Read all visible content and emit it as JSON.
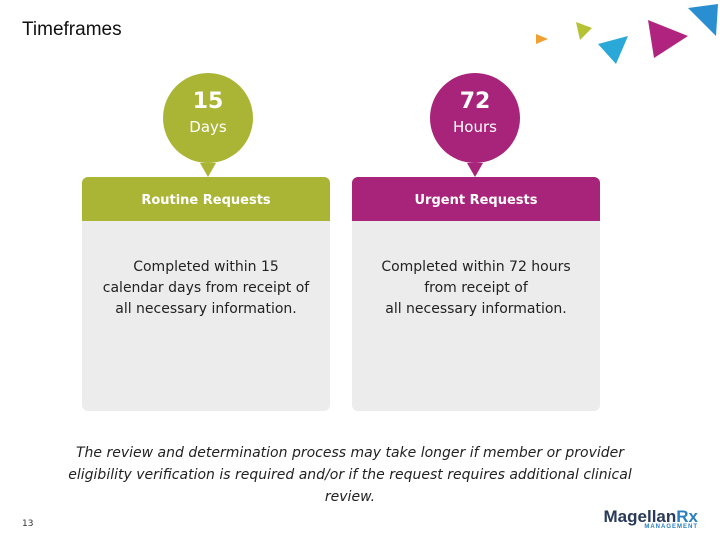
{
  "title": "Timeframes",
  "cards": [
    {
      "number": 15,
      "unit": "Days",
      "header": "Routine Requests",
      "body": [
        "Completed within 15",
        "calendar days from receipt of",
        "all necessary information."
      ]
    },
    {
      "number": 72,
      "unit": "Hours",
      "header": "Urgent Requests",
      "body": [
        "Completed within 72 hours",
        "from receipt of",
        "all necessary information."
      ]
    }
  ],
  "footnote": [
    "The review and determination process may take longer if member or provider",
    "eligibility verification is required and/or if the request requires additional clinical",
    "review."
  ],
  "page_number": "13",
  "logo": {
    "name": "Magellan",
    "accent": "Rx",
    "sub": "MANAGEMENT"
  }
}
